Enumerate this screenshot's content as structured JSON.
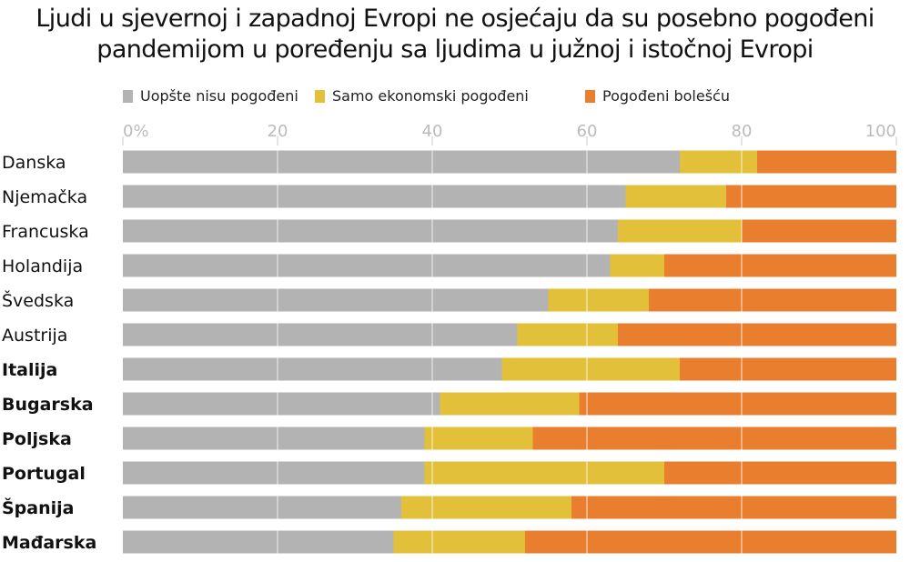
{
  "chart_data": {
    "type": "bar",
    "orientation": "horizontal",
    "stacked": true,
    "title": "Ljudi u sjevernoj i zapadnoj Evropi ne osjećaju da su posebno pogođeni pandemijom u poređenju sa ljudima u južnoj i istočnoj Evropi",
    "title_lines": [
      "Ljudi u sjevernoj i zapadnoj Evropi ne osjećaju da su posebno pogođeni",
      "pandemijom u poređenju sa ljudima u južnoj i istočnoj Evropi"
    ],
    "categories": [
      "Danska",
      "Njemačka",
      "Francuska",
      "Holandija",
      "Švedska",
      "Austrija",
      "Italija",
      "Bugarska",
      "Poljska",
      "Portugal",
      "Španija",
      "Mađarska"
    ],
    "bold_categories": [
      "Italija",
      "Bugarska",
      "Poljska",
      "Portugal",
      "Španija",
      "Mađarska"
    ],
    "series": [
      {
        "name": "Uopšte nisu pogođeni",
        "color": "#b3b3b3",
        "values": [
          72,
          65,
          64,
          63,
          55,
          51,
          49,
          41,
          39,
          39,
          36,
          35
        ]
      },
      {
        "name": "Samo ekonomski pogođeni",
        "color": "#e3c03a",
        "values": [
          10,
          13,
          16,
          7,
          13,
          13,
          23,
          18,
          14,
          31,
          22,
          17
        ]
      },
      {
        "name": "Pogođeni bolešću",
        "color": "#e97f2e",
        "values": [
          18,
          22,
          20,
          30,
          32,
          36,
          28,
          41,
          47,
          30,
          42,
          48
        ]
      }
    ],
    "xlim": [
      0,
      100
    ],
    "xticks": [
      "0%",
      "20",
      "40",
      "60",
      "80",
      "100"
    ],
    "xtick_values": [
      0,
      20,
      40,
      60,
      80,
      100
    ],
    "grid": true,
    "legend_position": "top"
  }
}
